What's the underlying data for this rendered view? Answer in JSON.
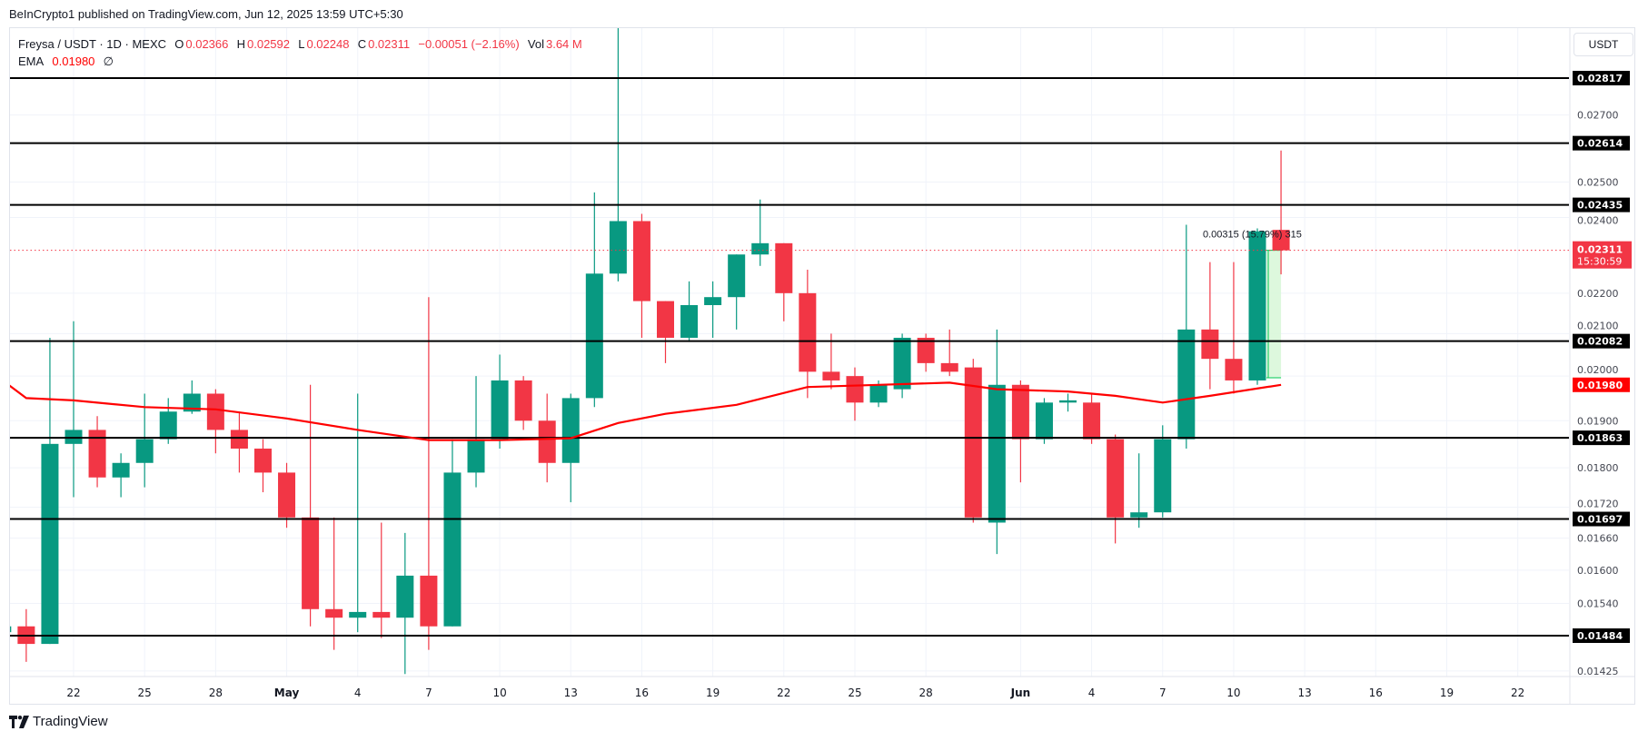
{
  "publish_line": "BeInCrypto1 published on TradingView.com, Jun 12, 2025 13:59 UTC+5:30",
  "legend": {
    "symbol": "Freysa / USDT · 1D · MEXC",
    "open_label": "O",
    "open": "0.02366",
    "high_label": "H",
    "high": "0.02592",
    "low_label": "L",
    "low": "0.02248",
    "close_label": "C",
    "close": "0.02311",
    "change": "−0.00051 (−2.16%)",
    "vol_label": "Vol",
    "vol": "3.64 M",
    "ema_label": "EMA",
    "ema_value": "0.01980",
    "ema_extra": "∅"
  },
  "currency_button": "USDT",
  "logo_text": "TradingView",
  "colors": {
    "up": "#089981",
    "down": "#f23645",
    "ema": "#ff0000",
    "level": "#000000",
    "measure": "#00c853"
  },
  "chart_data": {
    "type": "candlestick",
    "title": "",
    "y_scale": "log",
    "ylim": [
      0.01395,
      0.0302
    ],
    "grid": true,
    "x_tick_labels": [
      "22",
      "25",
      "28",
      "May",
      "4",
      "7",
      "10",
      "13",
      "16",
      "19",
      "22",
      "25",
      "28",
      "Jun",
      "4",
      "7",
      "10",
      "13",
      "16",
      "19",
      "22"
    ],
    "x_tick_dates": [
      "2025-04-22",
      "2025-04-25",
      "2025-04-28",
      "2025-05-01",
      "2025-05-04",
      "2025-05-07",
      "2025-05-10",
      "2025-05-13",
      "2025-05-16",
      "2025-05-19",
      "2025-05-22",
      "2025-05-25",
      "2025-05-28",
      "2025-06-01",
      "2025-06-04",
      "2025-06-07",
      "2025-06-10",
      "2025-06-13",
      "2025-06-16",
      "2025-06-19",
      "2025-06-22"
    ],
    "y_tick_labels": [
      "0.02700",
      "0.02500",
      "0.02400",
      "0.02200",
      "0.02100",
      "0.02000",
      "0.01900",
      "0.01800",
      "0.01720",
      "0.01660",
      "0.01600",
      "0.01540",
      "0.01425"
    ],
    "levels": [
      "0.02817",
      "0.02614",
      "0.02435",
      "0.02082",
      "0.01863",
      "0.01697",
      "0.01484"
    ],
    "last_price": {
      "value": "0.02311",
      "countdown": "15:30:59"
    },
    "ema_label_value": "0.01980",
    "measure": {
      "label": "0.00315 (15.79%) 315",
      "from": 0.01996,
      "to": 0.02311,
      "start_date": "2025-06-11",
      "end_date": "2025-06-12"
    },
    "candles_columns": [
      "date",
      "open",
      "high",
      "low",
      "close"
    ],
    "candles": [
      [
        "2025-04-19",
        0.0149,
        0.0152,
        0.0148,
        0.015
      ],
      [
        "2025-04-20",
        0.015,
        0.0153,
        0.0144,
        0.0147
      ],
      [
        "2025-04-21",
        0.0147,
        0.0209,
        0.0147,
        0.0185
      ],
      [
        "2025-04-22",
        0.0185,
        0.0213,
        0.0174,
        0.0188
      ],
      [
        "2025-04-23",
        0.0188,
        0.0191,
        0.0176,
        0.0178
      ],
      [
        "2025-04-24",
        0.0178,
        0.0183,
        0.0174,
        0.0181
      ],
      [
        "2025-04-25",
        0.0181,
        0.0196,
        0.0176,
        0.0186
      ],
      [
        "2025-04-26",
        0.0186,
        0.0195,
        0.0185,
        0.0192
      ],
      [
        "2025-04-27",
        0.0192,
        0.0199,
        0.01915,
        0.0196
      ],
      [
        "2025-04-28",
        0.0196,
        0.0197,
        0.0183,
        0.0188
      ],
      [
        "2025-04-29",
        0.0188,
        0.0192,
        0.0179,
        0.0184
      ],
      [
        "2025-04-30",
        0.0184,
        0.0186,
        0.0175,
        0.0179
      ],
      [
        "2025-05-01",
        0.0179,
        0.0181,
        0.0168,
        0.017
      ],
      [
        "2025-05-02",
        0.017,
        0.0198,
        0.015,
        0.0153
      ],
      [
        "2025-05-03",
        0.0153,
        0.017,
        0.0146,
        0.01515
      ],
      [
        "2025-05-04",
        0.01515,
        0.0196,
        0.0149,
        0.01525
      ],
      [
        "2025-05-05",
        0.01525,
        0.0169,
        0.0148,
        0.01515
      ],
      [
        "2025-05-06",
        0.01515,
        0.0167,
        0.0142,
        0.0159
      ],
      [
        "2025-05-07",
        0.0159,
        0.0219,
        0.0146,
        0.015
      ],
      [
        "2025-05-08",
        0.015,
        0.0186,
        0.015,
        0.0179
      ],
      [
        "2025-05-09",
        0.0179,
        0.02,
        0.0176,
        0.0186
      ],
      [
        "2025-05-10",
        0.0186,
        0.0205,
        0.0184,
        0.0199
      ],
      [
        "2025-05-11",
        0.0199,
        0.02,
        0.0188,
        0.019
      ],
      [
        "2025-05-12",
        0.019,
        0.0196,
        0.0177,
        0.0181
      ],
      [
        "2025-05-13",
        0.0181,
        0.0196,
        0.0173,
        0.0195
      ],
      [
        "2025-05-14",
        0.0195,
        0.0247,
        0.0193,
        0.0225
      ],
      [
        "2025-05-15",
        0.0225,
        0.0302,
        0.0223,
        0.0239
      ],
      [
        "2025-05-16",
        0.0239,
        0.0241,
        0.0209,
        0.0218
      ],
      [
        "2025-05-17",
        0.0218,
        0.0218,
        0.0203,
        0.0209
      ],
      [
        "2025-05-18",
        0.0209,
        0.0223,
        0.0208,
        0.0217
      ],
      [
        "2025-05-19",
        0.0217,
        0.0223,
        0.0209,
        0.0219
      ],
      [
        "2025-05-20",
        0.0219,
        0.023,
        0.0211,
        0.023
      ],
      [
        "2025-05-21",
        0.023,
        0.0245,
        0.0227,
        0.0233
      ],
      [
        "2025-05-22",
        0.0233,
        0.0233,
        0.0213,
        0.022
      ],
      [
        "2025-05-23",
        0.022,
        0.0226,
        0.0195,
        0.0201
      ],
      [
        "2025-05-24",
        0.0201,
        0.021,
        0.0197,
        0.0199
      ],
      [
        "2025-05-25",
        0.02,
        0.0202,
        0.019,
        0.0194
      ],
      [
        "2025-05-26",
        0.0194,
        0.0199,
        0.0193,
        0.0198
      ],
      [
        "2025-05-27",
        0.0197,
        0.021,
        0.0195,
        0.0209
      ],
      [
        "2025-05-28",
        0.0209,
        0.021,
        0.0201,
        0.0203
      ],
      [
        "2025-05-29",
        0.0203,
        0.0211,
        0.02,
        0.0201
      ],
      [
        "2025-05-30",
        0.0202,
        0.0204,
        0.0169,
        0.017
      ],
      [
        "2025-05-31",
        0.0169,
        0.0211,
        0.0163,
        0.0198
      ],
      [
        "2025-06-01",
        0.0198,
        0.0199,
        0.0177,
        0.0186
      ],
      [
        "2025-06-02",
        0.0186,
        0.0195,
        0.0185,
        0.0194
      ],
      [
        "2025-06-03",
        0.0194,
        0.0196,
        0.0192,
        0.01945
      ],
      [
        "2025-06-04",
        0.0194,
        0.0196,
        0.0185,
        0.0186
      ],
      [
        "2025-06-05",
        0.0186,
        0.0187,
        0.0165,
        0.017
      ],
      [
        "2025-06-06",
        0.017,
        0.0183,
        0.0168,
        0.0171
      ],
      [
        "2025-06-07",
        0.0171,
        0.0189,
        0.017,
        0.0186
      ],
      [
        "2025-06-08",
        0.0186,
        0.0238,
        0.0184,
        0.0211
      ],
      [
        "2025-06-09",
        0.0211,
        0.0228,
        0.0197,
        0.0204
      ],
      [
        "2025-06-10",
        0.0204,
        0.0228,
        0.0196,
        0.0199
      ],
      [
        "2025-06-11",
        0.0199,
        0.0237,
        0.0198,
        0.02362
      ],
      [
        "2025-06-12",
        0.02366,
        0.02592,
        0.02248,
        0.02311
      ]
    ],
    "ema_series": [
      [
        "2025-04-19",
        0.0199
      ],
      [
        "2025-04-20",
        0.0195
      ],
      [
        "2025-04-22",
        0.01945
      ],
      [
        "2025-04-25",
        0.0193
      ],
      [
        "2025-04-28",
        0.01925
      ],
      [
        "2025-05-01",
        0.01905
      ],
      [
        "2025-05-04",
        0.0188
      ],
      [
        "2025-05-07",
        0.01858
      ],
      [
        "2025-05-10",
        0.01858
      ],
      [
        "2025-05-13",
        0.01862
      ],
      [
        "2025-05-15",
        0.01895
      ],
      [
        "2025-05-17",
        0.01915
      ],
      [
        "2025-05-20",
        0.01935
      ],
      [
        "2025-05-23",
        0.01975
      ],
      [
        "2025-05-26",
        0.0198
      ],
      [
        "2025-05-29",
        0.01985
      ],
      [
        "2025-05-31",
        0.0197
      ],
      [
        "2025-06-03",
        0.01965
      ],
      [
        "2025-06-05",
        0.01955
      ],
      [
        "2025-06-07",
        0.0194
      ],
      [
        "2025-06-09",
        0.01955
      ],
      [
        "2025-06-12",
        0.0198
      ]
    ]
  }
}
